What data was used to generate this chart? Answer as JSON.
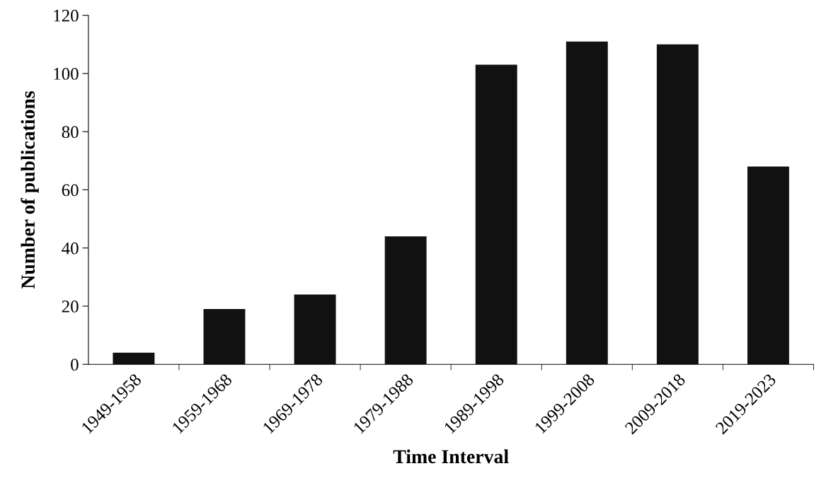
{
  "chart_data": {
    "type": "bar",
    "xlabel": "Time Interval",
    "ylabel": "Number of publications",
    "categories": [
      "1949-1958",
      "1959-1968",
      "1969-1978",
      "1979-1988",
      "1989-1998",
      "1999-2008",
      "2009-2018",
      "2019-2023"
    ],
    "values": [
      4,
      19,
      24,
      44,
      103,
      111,
      110,
      68
    ],
    "color": "#111111",
    "ylim": [
      0,
      120
    ],
    "yticks": [
      0,
      20,
      40,
      60,
      80,
      100,
      120
    ],
    "grid": false
  }
}
